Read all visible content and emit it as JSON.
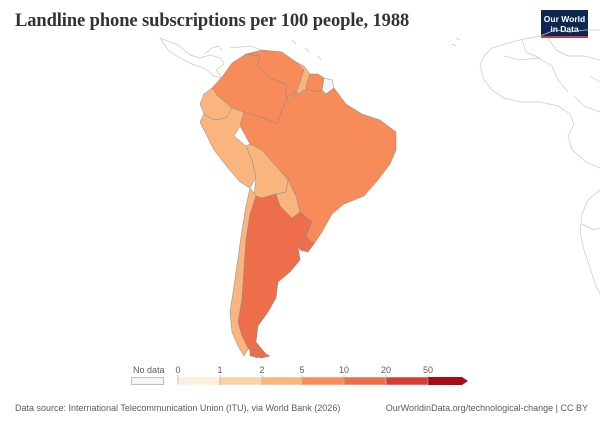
{
  "title": "Landline phone subscriptions per 100 people, 1988",
  "logo": {
    "line1": "Our World",
    "line2": "in Data"
  },
  "legend": {
    "no_data_label": "No data",
    "ticks": [
      "0",
      "1",
      "2",
      "5",
      "10",
      "20",
      "50"
    ],
    "colors": [
      "#fdeedd",
      "#fbd3a5",
      "#f9b57d",
      "#f78b59",
      "#ee6e4c",
      "#d73e33",
      "#a50d16"
    ]
  },
  "countries": [
    {
      "name": "Colombia",
      "bin": 4,
      "color": "#f78b59"
    },
    {
      "name": "Venezuela",
      "bin": 4,
      "color": "#f78b59"
    },
    {
      "name": "Guyana",
      "bin": 3,
      "color": "#f9b57d"
    },
    {
      "name": "Suriname",
      "bin": 4,
      "color": "#f78b59"
    },
    {
      "name": "French Guiana",
      "bin": 0,
      "color": "#f5f5f5"
    },
    {
      "name": "Ecuador",
      "bin": 3,
      "color": "#f9b57d"
    },
    {
      "name": "Peru",
      "bin": 3,
      "color": "#f9b57d"
    },
    {
      "name": "Brazil",
      "bin": 4,
      "color": "#f78b59"
    },
    {
      "name": "Bolivia",
      "bin": 3,
      "color": "#f9b57d"
    },
    {
      "name": "Paraguay",
      "bin": 3,
      "color": "#f9b57d"
    },
    {
      "name": "Chile",
      "bin": 3,
      "color": "#f9b57d"
    },
    {
      "name": "Argentina",
      "bin": 5,
      "color": "#ee6e4c"
    },
    {
      "name": "Uruguay",
      "bin": 5,
      "color": "#ee6e4c"
    }
  ],
  "footer": {
    "source": "Data source: International Telecommunication Union (ITU), via World Bank (2026)",
    "url": "OurWorldinData.org/technological-change | CC BY"
  }
}
